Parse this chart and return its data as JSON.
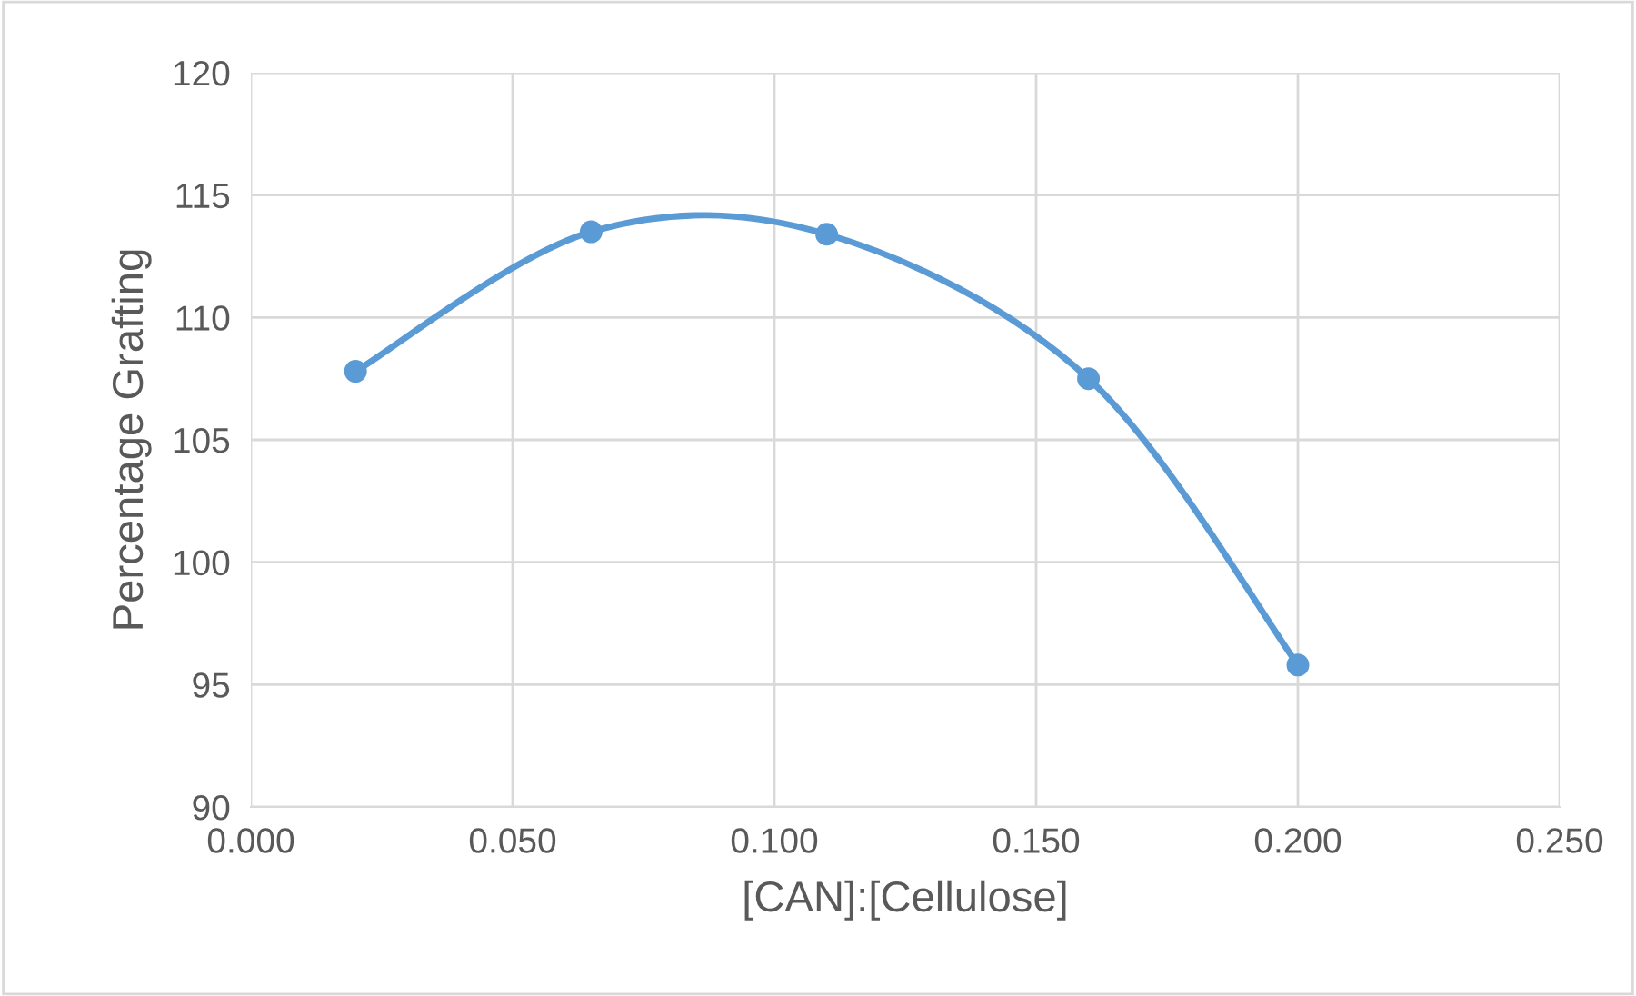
{
  "chart_data": {
    "type": "line",
    "xlabel": "[CAN]:[Cellulose]",
    "ylabel": "Percentage Grafting",
    "x": [
      0.02,
      0.065,
      0.11,
      0.16,
      0.2
    ],
    "series": [
      {
        "color": "#5b9bd5",
        "values": [
          107.8,
          113.5,
          113.4,
          107.5,
          95.8
        ]
      }
    ],
    "xlim": [
      0,
      0.25
    ],
    "xticks": [
      {
        "value": 0,
        "label": "0.000"
      },
      {
        "value": 0.05,
        "label": "0.050"
      },
      {
        "value": 0.1,
        "label": "0.100"
      },
      {
        "value": 0.15,
        "label": "0.150"
      },
      {
        "value": 0.2,
        "label": "0.200"
      },
      {
        "value": 0.25,
        "label": "0.250"
      }
    ],
    "ylim": [
      90,
      120
    ],
    "yticks": [
      90,
      95,
      100,
      105,
      110,
      115,
      120
    ],
    "grid": true,
    "marker": "circle",
    "line_style": "solid",
    "legend": false
  }
}
